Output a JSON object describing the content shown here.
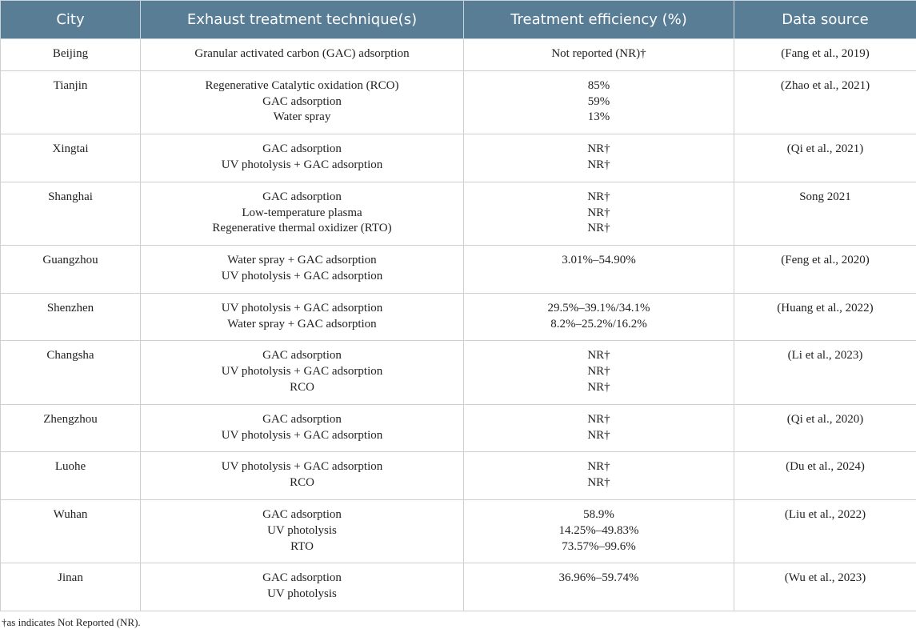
{
  "table": {
    "header": [
      "City",
      "Exhaust treatment technique(s)",
      "Treatment efficiency (%)",
      "Data source"
    ],
    "rows": [
      [
        [
          "Beijing"
        ],
        [
          "Granular activated carbon (GAC) adsorption"
        ],
        [
          "Not reported (NR)†"
        ],
        [
          "(Fang et al., 2019)"
        ]
      ],
      [
        [
          "Tianjin"
        ],
        [
          "Regenerative Catalytic oxidation (RCO)",
          "GAC adsorption",
          "Water spray"
        ],
        [
          "85%",
          "59%",
          "13%"
        ],
        [
          "(Zhao et al., 2021)"
        ]
      ],
      [
        [
          "Xingtai"
        ],
        [
          "GAC adsorption",
          "UV photolysis + GAC adsorption"
        ],
        [
          "NR†",
          "NR†"
        ],
        [
          "(Qi et al., 2021)"
        ]
      ],
      [
        [
          "Shanghai"
        ],
        [
          "GAC adsorption",
          "Low-temperature plasma",
          "Regenerative thermal oxidizer (RTO)"
        ],
        [
          "NR†",
          "NR†",
          "NR†"
        ],
        [
          "Song 2021"
        ]
      ],
      [
        [
          "Guangzhou"
        ],
        [
          "Water spray + GAC adsorption",
          "UV photolysis + GAC adsorption"
        ],
        [
          "3.01%–54.90%"
        ],
        [
          "(Feng et al., 2020)"
        ]
      ],
      [
        [
          "Shenzhen"
        ],
        [
          "UV photolysis + GAC adsorption",
          "Water spray + GAC adsorption"
        ],
        [
          "29.5%–39.1%/34.1%",
          "8.2%–25.2%/16.2%"
        ],
        [
          "(Huang et al., 2022)"
        ]
      ],
      [
        [
          "Changsha"
        ],
        [
          "GAC adsorption",
          "UV photolysis + GAC adsorption",
          "RCO"
        ],
        [
          "NR†",
          "NR†",
          "NR†"
        ],
        [
          "(Li et al., 2023)"
        ]
      ],
      [
        [
          "Zhengzhou"
        ],
        [
          "GAC adsorption",
          "UV photolysis + GAC adsorption"
        ],
        [
          "NR†",
          "NR†"
        ],
        [
          "(Qi et al., 2020)"
        ]
      ],
      [
        [
          "Luohe"
        ],
        [
          "UV photolysis + GAC adsorption",
          "RCO"
        ],
        [
          "NR†",
          "NR†"
        ],
        [
          "(Du et al., 2024)"
        ]
      ],
      [
        [
          "Wuhan"
        ],
        [
          "GAC adsorption",
          "UV photolysis",
          "RTO"
        ],
        [
          "58.9%",
          "14.25%–49.83%",
          "73.57%–99.6%"
        ],
        [
          "(Liu et al., 2022)"
        ]
      ],
      [
        [
          "Jinan"
        ],
        [
          "GAC adsorption",
          "UV photolysis"
        ],
        [
          "36.96%–59.74%"
        ],
        [
          "(Wu et al., 2023)"
        ]
      ]
    ],
    "footnote": "†as indicates Not Reported (NR)."
  }
}
